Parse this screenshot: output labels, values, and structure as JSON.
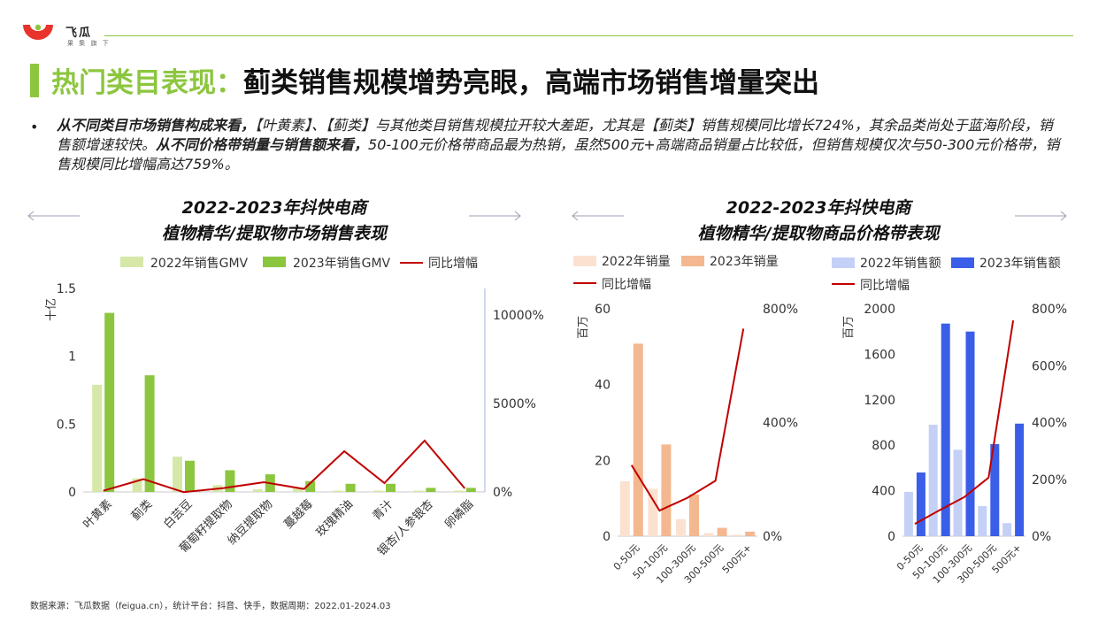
{
  "brand": {
    "name": "飞瓜",
    "tagline": "果 集 旗 下",
    "colors": {
      "green": "#8cc63f",
      "red": "#e8342a"
    }
  },
  "title": {
    "highlight": "热门类目表现：",
    "rest": "蓟类销售规模增势亮眼，高端市场销售增量突出"
  },
  "bullet": {
    "p1_bold": "从不同类目市场销售构成来看，",
    "p1": "【叶黄素】、【蓟类】与其他类目销售规模拉开较大差距，尤其是【蓟类】销售规模同比增长724%，其余品类尚处于蓝海阶段，销售额增速较快。",
    "p2_bold": "从不同价格带销量与销售额来看，",
    "p2": "50-100元价格带商品最为热销，虽然500元+高端商品销量占比较低，但销售规模仅次与50-300元价格带，销售规模同比增幅高达759%。"
  },
  "left_chart_title": {
    "line1": "2022-2023年抖快电商",
    "line2": "植物精华/提取物市场销售表现"
  },
  "right_chart_title": {
    "line1": "2022-2023年抖快电商",
    "line2": "植物精华/提取物商品价格带表现"
  },
  "footer": "数据来源：飞瓜数据（feigua.cn），统计平台：抖音、快手，数据周期：2022.01-2024.03",
  "chart_data": [
    {
      "type": "bar",
      "categories": [
        "叶黄素",
        "蓟类",
        "白芸豆",
        "葡萄籽提取物",
        "纳豆提取物",
        "蔓越莓",
        "玫瑰精油",
        "青汁",
        "银杏/人参银杏",
        "卵磷脂"
      ],
      "series": [
        {
          "name": "2022年销售GMV",
          "values": [
            0.79,
            0.1,
            0.26,
            0.05,
            0.02,
            0.03,
            0.01,
            0.01,
            0.01,
            0.01
          ],
          "color": "#d6e8a8"
        },
        {
          "name": "2023年销售GMV",
          "values": [
            1.32,
            0.86,
            0.23,
            0.16,
            0.13,
            0.08,
            0.06,
            0.06,
            0.03,
            0.03
          ],
          "color": "#8cc63f"
        },
        {
          "name": "同比增幅",
          "axis": "right",
          "type": "line",
          "values": [
            0.67,
            7.24,
            -0.12,
            2.2,
            5.5,
            1.67,
            23.0,
            5.0,
            29.0,
            2.0
          ],
          "color": "#c00000"
        }
      ],
      "ylabel": "十亿",
      "y_ticks": [
        "0",
        "0.5",
        "1",
        "1.5"
      ],
      "y2_ticks": [
        "0%",
        "5000%",
        "10000%"
      ],
      "ylim": [
        0,
        1.5
      ],
      "y2lim": [
        0,
        115
      ],
      "grid": false,
      "legend": "top"
    },
    {
      "type": "bar",
      "categories": [
        "0-50元",
        "50-100元",
        "100-300元",
        "300-500元",
        "500元+"
      ],
      "series": [
        {
          "name": "2022年销量",
          "values": [
            14.5,
            12.5,
            4.5,
            0.8,
            0.4
          ],
          "color": "#fbe1d0"
        },
        {
          "name": "2023年销量",
          "values": [
            50.8,
            24.2,
            11.0,
            2.2,
            1.2
          ],
          "color": "#f4b890"
        },
        {
          "name": "同比增幅",
          "axis": "right",
          "type": "line",
          "values": [
            2.5,
            0.9,
            1.35,
            1.95,
            7.3
          ],
          "color": "#c00000"
        }
      ],
      "ylabel": "百万",
      "y_ticks": [
        "0",
        "20",
        "40",
        "60"
      ],
      "y2_ticks": [
        "0%",
        "400%",
        "800%"
      ],
      "ylim": [
        0,
        60
      ],
      "y2lim": [
        0,
        8
      ],
      "grid": false,
      "legend": "top-left"
    },
    {
      "type": "bar",
      "categories": [
        "0-50元",
        "50-100元",
        "100-300元",
        "300-500元",
        "500元+"
      ],
      "series": [
        {
          "name": "2022年销售额",
          "values": [
            390,
            980,
            760,
            265,
            115
          ],
          "color": "#c5d0f7"
        },
        {
          "name": "2023年销售额",
          "values": [
            560,
            1870,
            1800,
            810,
            990
          ],
          "color": "#3a5ee8"
        },
        {
          "name": "同比增幅",
          "axis": "right",
          "type": "line",
          "values": [
            0.43,
            0.91,
            1.37,
            2.06,
            7.59
          ],
          "color": "#c00000"
        }
      ],
      "ylabel": "百万",
      "y_ticks": [
        "0",
        "400",
        "800",
        "1200",
        "1600",
        "2000"
      ],
      "y2_ticks": [
        "0%",
        "200%",
        "400%",
        "600%",
        "800%"
      ],
      "ylim": [
        0,
        2000
      ],
      "y2lim": [
        0,
        8
      ],
      "grid": false,
      "legend": "top-left"
    }
  ]
}
